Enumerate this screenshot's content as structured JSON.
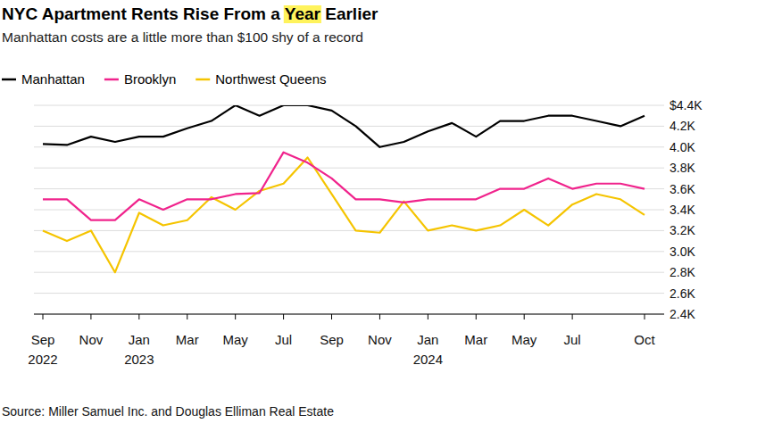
{
  "chart_data": {
    "type": "line",
    "title": "NYC Apartment Rents Rise From a Year Earlier",
    "subtitle": "Manhattan costs are a little more than $100 shy of a record",
    "source": "Source: Miller Samuel Inc. and Douglas Elliman Real Estate",
    "categories": [
      "Sep 2022",
      null,
      "Nov",
      null,
      "Jan 2023",
      null,
      "Mar",
      null,
      "May",
      null,
      "Jul",
      null,
      "Sep",
      null,
      "Nov",
      null,
      "Jan 2024",
      null,
      "Mar",
      null,
      "May",
      null,
      "Jul",
      null,
      null,
      "Oct"
    ],
    "series": [
      {
        "name": "Manhattan",
        "color": "#000000",
        "values": [
          4030,
          4020,
          4100,
          4050,
          4100,
          4100,
          4180,
          4250,
          4400,
          4300,
          4400,
          4400,
          4350,
          4200,
          4000,
          4050,
          4150,
          4230,
          4100,
          4250,
          4250,
          4300,
          4300,
          4250,
          4200,
          4300
        ]
      },
      {
        "name": "Brooklyn",
        "color": "#f0238c",
        "values": [
          3500,
          3500,
          3300,
          3300,
          3500,
          3400,
          3500,
          3500,
          3550,
          3560,
          3950,
          3850,
          3700,
          3500,
          3500,
          3470,
          3500,
          3500,
          3500,
          3600,
          3600,
          3700,
          3600,
          3650,
          3650,
          3600
        ]
      },
      {
        "name": "Northwest Queens",
        "color": "#f5c400",
        "values": [
          3200,
          3100,
          3200,
          2800,
          3370,
          3250,
          3300,
          3520,
          3400,
          3580,
          3650,
          3900,
          3550,
          3200,
          3180,
          3480,
          3200,
          3250,
          3200,
          3250,
          3400,
          3250,
          3450,
          3550,
          3500,
          3350
        ]
      }
    ],
    "ylim": [
      2400,
      4400
    ],
    "yticks": [
      {
        "value": 2400,
        "label": "2.4K"
      },
      {
        "value": 2600,
        "label": "2.6K"
      },
      {
        "value": 2800,
        "label": "2.8K"
      },
      {
        "value": 3000,
        "label": "3.0K"
      },
      {
        "value": 3200,
        "label": "3.2K"
      },
      {
        "value": 3400,
        "label": "3.4K"
      },
      {
        "value": 3600,
        "label": "3.6K"
      },
      {
        "value": 3800,
        "label": "3.8K"
      },
      {
        "value": 4000,
        "label": "4.0K"
      },
      {
        "value": 4200,
        "label": "4.2K"
      },
      {
        "value": 4400,
        "label": "$4.4K"
      }
    ],
    "grid": true,
    "legend": "top"
  }
}
